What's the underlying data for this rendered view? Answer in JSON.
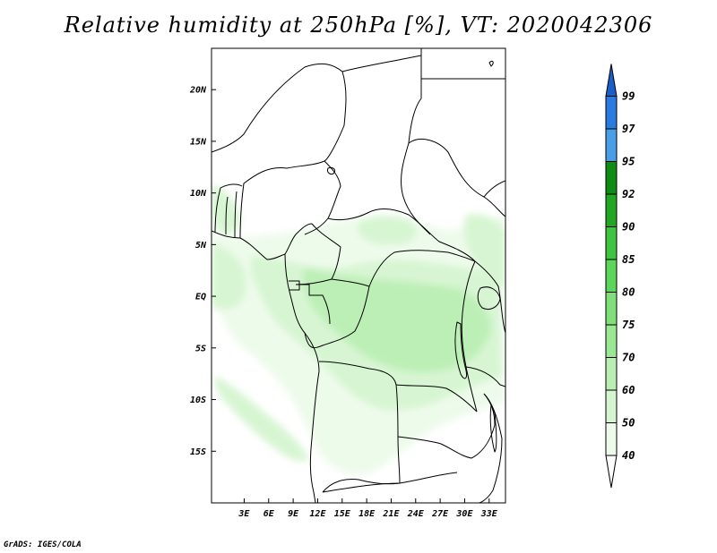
{
  "title": "Relative humidity at 250hPa [%], VT: 2020042306",
  "credit": "GrADS: IGES/COLA",
  "map": {
    "lon_range": [
      -1,
      35
    ],
    "lat_range": [
      -20,
      24
    ],
    "lat_ticks": [
      {
        "value": 20,
        "label": "20N"
      },
      {
        "value": 15,
        "label": "15N"
      },
      {
        "value": 10,
        "label": "10N"
      },
      {
        "value": 5,
        "label": "5N"
      },
      {
        "value": 0,
        "label": "EQ"
      },
      {
        "value": -5,
        "label": "5S"
      },
      {
        "value": -10,
        "label": "10S"
      },
      {
        "value": -15,
        "label": "15S"
      }
    ],
    "lon_ticks": [
      {
        "value": 3,
        "label": "3E"
      },
      {
        "value": 6,
        "label": "6E"
      },
      {
        "value": 9,
        "label": "9E"
      },
      {
        "value": 12,
        "label": "12E"
      },
      {
        "value": 15,
        "label": "15E"
      },
      {
        "value": 18,
        "label": "18E"
      },
      {
        "value": 21,
        "label": "21E"
      },
      {
        "value": 24,
        "label": "24E"
      },
      {
        "value": 27,
        "label": "27E"
      },
      {
        "value": 30,
        "label": "30E"
      },
      {
        "value": 33,
        "label": "33E"
      }
    ]
  },
  "colorbar": {
    "levels": [
      {
        "label": "40",
        "color": "#edfbea"
      },
      {
        "label": "50",
        "color": "#d5f5d0"
      },
      {
        "label": "60",
        "color": "#b9efb2"
      },
      {
        "label": "70",
        "color": "#9be894"
      },
      {
        "label": "75",
        "color": "#7fe07a"
      },
      {
        "label": "80",
        "color": "#5cd65a"
      },
      {
        "label": "85",
        "color": "#3ec43e"
      },
      {
        "label": "90",
        "color": "#23a723"
      },
      {
        "label": "92",
        "color": "#0f8c14"
      },
      {
        "label": "95",
        "color": "#4a9ee8"
      },
      {
        "label": "97",
        "color": "#2a7be0"
      },
      {
        "label": "99",
        "color": "#1a5fc8"
      }
    ],
    "below_color": "#ffffff",
    "above_color": "#1a5fc8"
  }
}
